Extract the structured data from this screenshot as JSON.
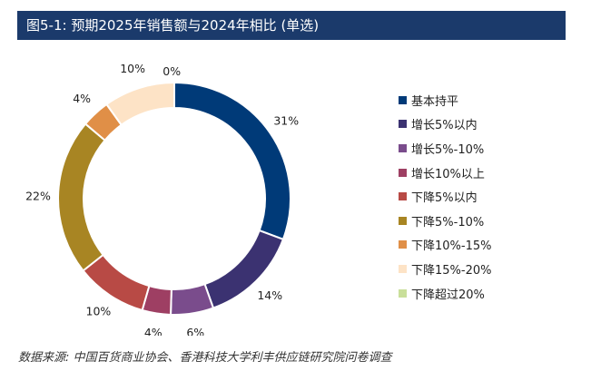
{
  "header": {
    "title": "图5-1: 预期2025年销售额与2024年相比 (单选)"
  },
  "chart_data": {
    "type": "pie",
    "donut": true,
    "categories": [
      "基本持平",
      "增长5%以内",
      "增长5%-10%",
      "增长10%以上",
      "下降5%以内",
      "下降5%-10%",
      "下降10%-15%",
      "下降15%-20%",
      "下降超过20%"
    ],
    "values": [
      31,
      14,
      6,
      4,
      10,
      22,
      4,
      10,
      0
    ],
    "labels": [
      "31%",
      "14%",
      "6%",
      "4%",
      "10%",
      "22%",
      "4%",
      "10%",
      "0%"
    ],
    "colors": [
      "#003a78",
      "#3b3271",
      "#7a4c8c",
      "#9e3f63",
      "#b84a45",
      "#a88523",
      "#e08f47",
      "#fde3c6",
      "#c9df9a"
    ],
    "legend_position": "right"
  },
  "source": {
    "text": "数据来源: 中国百货商业协会、香港科技大学利丰供应链研究院问卷调查"
  }
}
